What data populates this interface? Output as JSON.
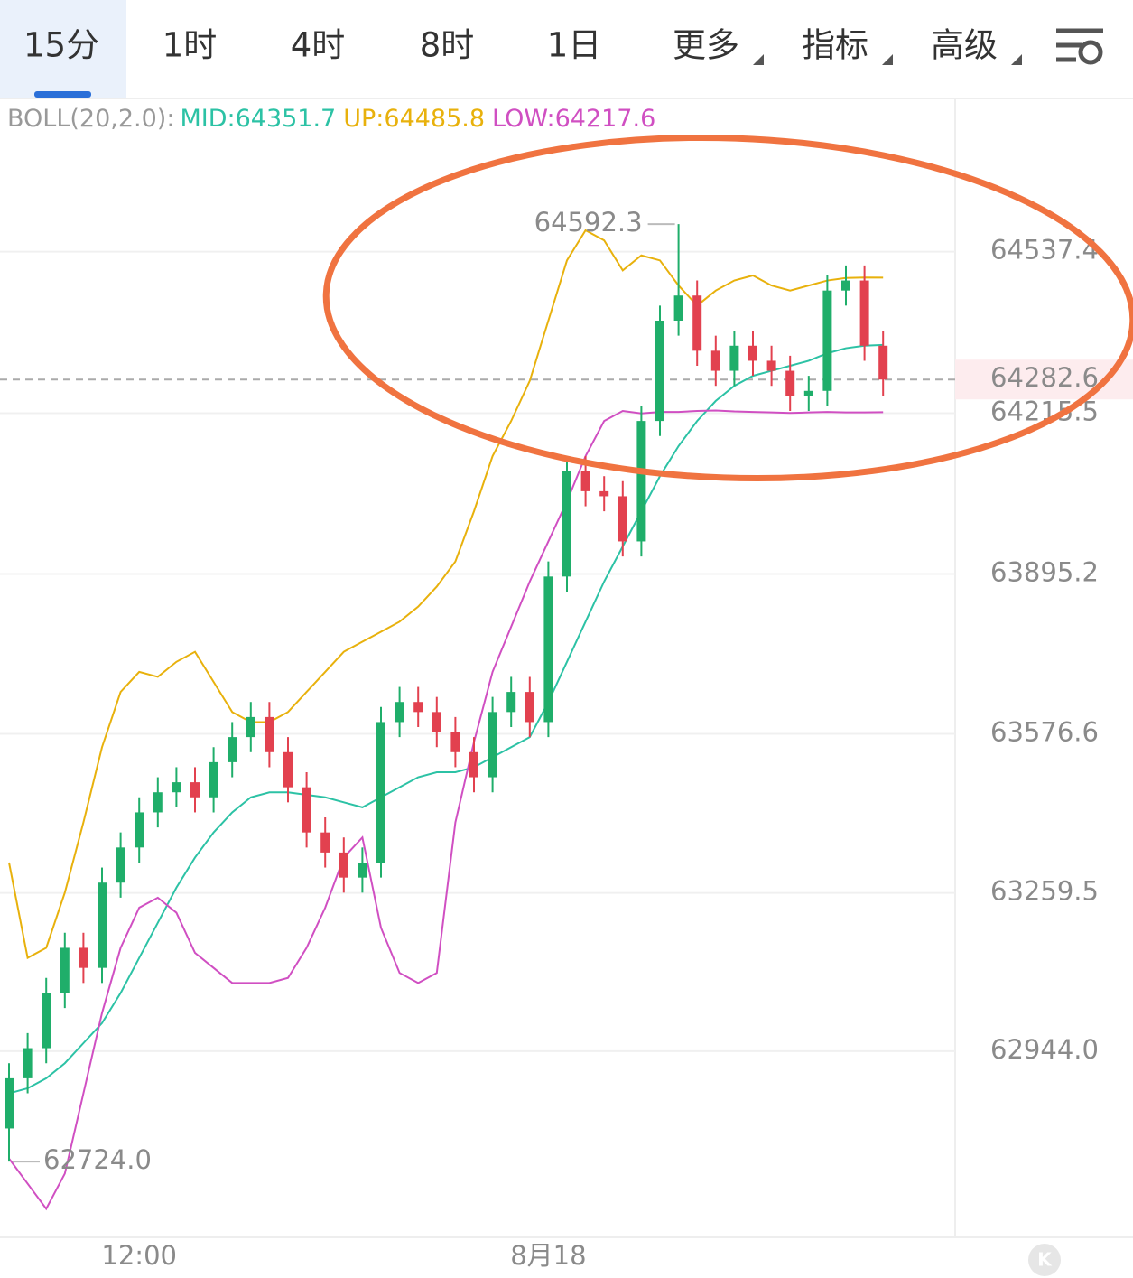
{
  "tabs": [
    "15分",
    "1时",
    "4时",
    "8时",
    "1日",
    "更多",
    "指标",
    "高级"
  ],
  "active_tab": 0,
  "chart_data": {
    "type": "candlestick",
    "indicator": "BOLL(20,2.0):",
    "categories": [
      null,
      null,
      null,
      null,
      null,
      null,
      null,
      "12:00",
      null,
      null,
      null,
      null,
      null,
      null,
      null,
      null,
      null,
      null,
      null,
      null,
      null,
      null,
      null,
      null,
      null,
      null,
      null,
      null,
      null,
      "8月18",
      null,
      null,
      null,
      null,
      null,
      null,
      null,
      null,
      null,
      null,
      null,
      null,
      null,
      null,
      null,
      null,
      null,
      null
    ],
    "open": [
      62790,
      62890,
      62950,
      63060,
      63150,
      63110,
      63280,
      63350,
      63420,
      63460,
      63480,
      63450,
      63520,
      63570,
      63610,
      63540,
      63470,
      63380,
      63340,
      63290,
      63320,
      63600,
      63640,
      63620,
      63580,
      63540,
      63490,
      63620,
      63660,
      63600,
      63890,
      64100,
      64060,
      64050,
      63960,
      64200,
      64400,
      64450,
      64340,
      64300,
      64350,
      64320,
      64300,
      64250,
      64260,
      64460,
      64480,
      64350
    ],
    "high": [
      62920,
      62980,
      63090,
      63180,
      63180,
      63310,
      63380,
      63450,
      63490,
      63510,
      63510,
      63550,
      63600,
      63640,
      63640,
      63570,
      63500,
      63410,
      63370,
      63350,
      63630,
      63670,
      63670,
      63650,
      63610,
      63570,
      63650,
      63690,
      63690,
      63920,
      64130,
      64130,
      64090,
      64080,
      64230,
      64430,
      64592.3,
      64480,
      64370,
      64380,
      64380,
      64350,
      64330,
      64290,
      64490,
      64510,
      64510,
      64380
    ],
    "low": [
      62724,
      62860,
      62920,
      63030,
      63080,
      63080,
      63250,
      63320,
      63390,
      63430,
      63420,
      63420,
      63490,
      63540,
      63510,
      63440,
      63350,
      63310,
      63260,
      63260,
      63290,
      63570,
      63590,
      63550,
      63510,
      63460,
      63460,
      63590,
      63570,
      63570,
      63860,
      64030,
      64020,
      63930,
      63930,
      64170,
      64370,
      64310,
      64270,
      64270,
      64290,
      64270,
      64220,
      64220,
      64230,
      64430,
      64320,
      64250
    ],
    "close": [
      62890,
      62950,
      63060,
      63150,
      63110,
      63280,
      63350,
      63420,
      63460,
      63480,
      63450,
      63520,
      63570,
      63610,
      63540,
      63470,
      63380,
      63340,
      63290,
      63320,
      63600,
      63640,
      63620,
      63580,
      63540,
      63490,
      63620,
      63660,
      63600,
      63890,
      64100,
      64060,
      64050,
      63960,
      64200,
      64400,
      64450,
      64340,
      64300,
      64350,
      64320,
      64300,
      64250,
      64260,
      64460,
      64480,
      64350,
      64282.6
    ],
    "rise_color": "#1fae6a",
    "fall_color": "#e2414f",
    "series": [
      {
        "name": "MID:64351.7",
        "color": "#2cc2a5",
        "values": [
          62860,
          62870,
          62890,
          62920,
          62960,
          63000,
          63060,
          63130,
          63200,
          63270,
          63330,
          63380,
          63420,
          63450,
          63460,
          63460,
          63455,
          63450,
          63440,
          63430,
          63450,
          63470,
          63490,
          63500,
          63500,
          63510,
          63530,
          63550,
          63570,
          63640,
          63720,
          63800,
          63880,
          63950,
          64020,
          64090,
          64150,
          64200,
          64240,
          64270,
          64290,
          64300,
          64310,
          64320,
          64335,
          64345,
          64350,
          64351.7
        ]
      },
      {
        "name": "UP:64485.8",
        "color": "#e8b10c",
        "values": [
          63320,
          63130,
          63150,
          63260,
          63400,
          63550,
          63660,
          63700,
          63690,
          63720,
          63740,
          63680,
          63620,
          63600,
          63600,
          63620,
          63660,
          63700,
          63740,
          63760,
          63780,
          63800,
          63830,
          63870,
          63920,
          64020,
          64130,
          64200,
          64280,
          64400,
          64520,
          64580,
          64560,
          64500,
          64530,
          64520,
          64470,
          64430,
          64460,
          64480,
          64490,
          64470,
          64460,
          64470,
          64480,
          64485,
          64486,
          64485.8
        ]
      },
      {
        "name": "LOW:64217.6",
        "color": "#d04fc2",
        "values": [
          62730,
          62680,
          62630,
          62700,
          62860,
          63020,
          63150,
          63230,
          63250,
          63220,
          63140,
          63110,
          63080,
          63080,
          63080,
          63090,
          63150,
          63230,
          63330,
          63370,
          63190,
          63100,
          63080,
          63100,
          63400,
          63560,
          63700,
          63790,
          63880,
          63960,
          64040,
          64130,
          64200,
          64220,
          64215,
          64218,
          64218,
          64220,
          64221,
          64219,
          64218,
          64217,
          64216,
          64217,
          64218,
          64217,
          64217,
          64217.6
        ]
      }
    ],
    "ylim": [
      62573,
      64841
    ],
    "yticks": [
      64537.4,
      64215.5,
      63895.2,
      63576.6,
      63259.5,
      {
        "value": 62944,
        "label": "62944.0"
      }
    ],
    "grid": true,
    "last_price": 64282.6,
    "extremes": [
      {
        "value": 64592.3,
        "label": "64592.3"
      },
      {
        "value": 62724,
        "label": "62724.0"
      }
    ]
  }
}
